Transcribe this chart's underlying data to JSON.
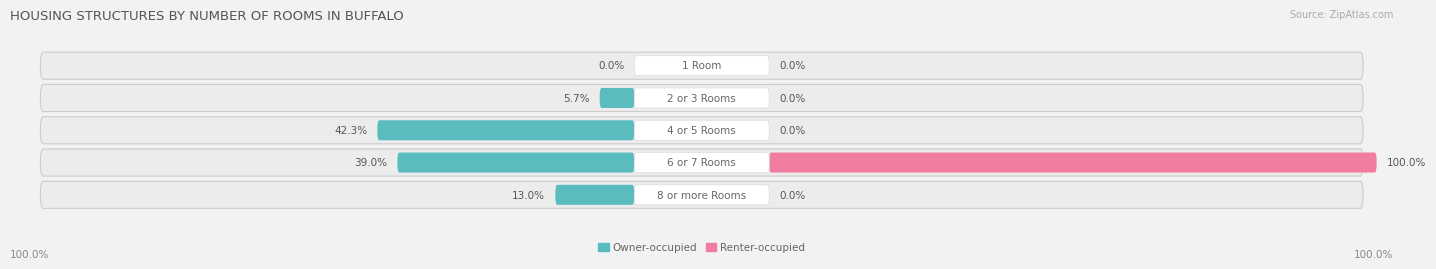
{
  "title": "HOUSING STRUCTURES BY NUMBER OF ROOMS IN BUFFALO",
  "source": "Source: ZipAtlas.com",
  "categories": [
    "1 Room",
    "2 or 3 Rooms",
    "4 or 5 Rooms",
    "6 or 7 Rooms",
    "8 or more Rooms"
  ],
  "owner_pct": [
    0.0,
    5.7,
    42.3,
    39.0,
    13.0
  ],
  "renter_pct": [
    0.0,
    0.0,
    0.0,
    100.0,
    0.0
  ],
  "owner_color": "#5bbcbf",
  "renter_color": "#f07ca0",
  "row_bg_color": "#e8e8e8",
  "label_bg_color": "#ffffff",
  "max_value": 100.0,
  "figsize": [
    14.06,
    2.69
  ],
  "dpi": 100,
  "title_fontsize": 9.5,
  "label_fontsize": 7.5,
  "tick_fontsize": 7.5,
  "source_fontsize": 7,
  "axis_label_left": "100.0%",
  "axis_label_right": "100.0%",
  "legend_label_owner": "Owner-occupied",
  "legend_label_renter": "Renter-occupied"
}
